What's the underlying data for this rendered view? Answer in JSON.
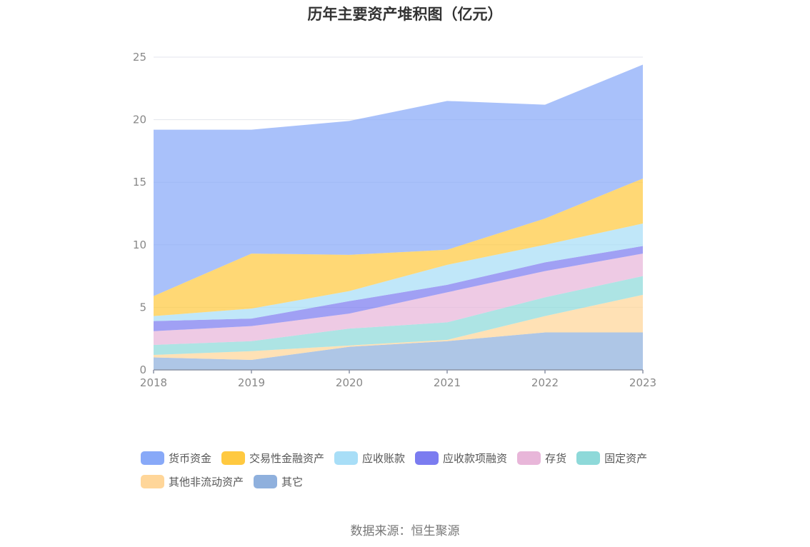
{
  "chart_data": {
    "type": "area",
    "stacked": true,
    "title": "历年主要资产堆积图（亿元）",
    "x": [
      "2018",
      "2019",
      "2020",
      "2021",
      "2022",
      "2023"
    ],
    "ylim": [
      0,
      25
    ],
    "yticks": [
      0,
      5,
      10,
      15,
      20,
      25
    ],
    "grid": true,
    "legend_position": "bottom",
    "series": [
      {
        "name": "其它",
        "color": "#8FB0DD",
        "values": [
          1.0,
          0.8,
          1.85,
          2.3,
          3.0,
          3.0
        ]
      },
      {
        "name": "其他非流动资产",
        "color": "#FFD699",
        "values": [
          0.2,
          0.7,
          0.1,
          0.1,
          1.3,
          3.0
        ]
      },
      {
        "name": "固定资产",
        "color": "#8ED9D9",
        "values": [
          0.8,
          0.8,
          1.35,
          1.4,
          1.5,
          1.5
        ]
      },
      {
        "name": "存货",
        "color": "#E8B6D9",
        "values": [
          1.1,
          1.2,
          1.2,
          2.4,
          2.1,
          1.8
        ]
      },
      {
        "name": "应收款项融资",
        "color": "#7B7CF0",
        "values": [
          0.8,
          0.6,
          1.0,
          0.6,
          0.7,
          0.6
        ]
      },
      {
        "name": "应收账款",
        "color": "#A8DEF7",
        "values": [
          0.4,
          0.8,
          0.8,
          1.6,
          1.4,
          1.8
        ]
      },
      {
        "name": "交易性金融资产",
        "color": "#FFC940",
        "values": [
          1.6,
          4.4,
          2.9,
          1.2,
          2.1,
          3.6
        ]
      },
      {
        "name": "货币资金",
        "color": "#88A9F8",
        "values": [
          13.3,
          9.9,
          10.7,
          11.9,
          9.1,
          9.1
        ]
      }
    ]
  },
  "legend_order": [
    "货币资金",
    "交易性金融资产",
    "应收账款",
    "应收款项融资",
    "存货",
    "固定资产",
    "其他非流动资产",
    "其它"
  ],
  "source": "数据来源：恒生聚源"
}
